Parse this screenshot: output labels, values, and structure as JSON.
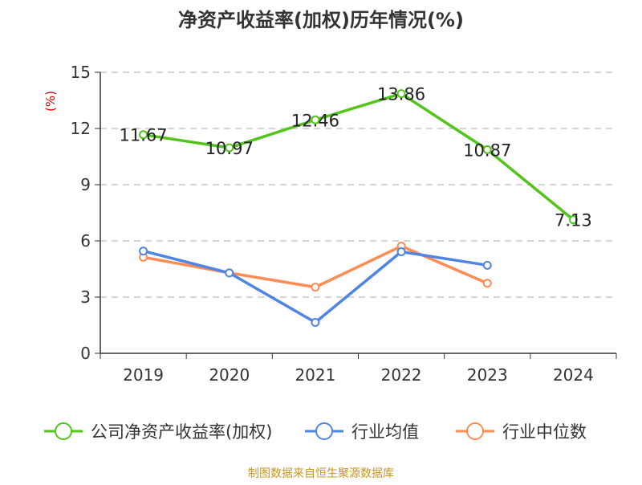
{
  "chart_data": {
    "type": "line",
    "title": "净资产收益率(加权)历年情况(%)",
    "ylabel": "(%)",
    "xlabel": "",
    "categories": [
      "2019",
      "2020",
      "2021",
      "2022",
      "2023",
      "2024"
    ],
    "ylim": [
      0,
      15
    ],
    "yticks": [
      0,
      3,
      6,
      9,
      12,
      15
    ],
    "grid": true,
    "legend_placement": "bottom",
    "series": [
      {
        "name": "公司净资产收益率(加权)",
        "color": "#52c41a",
        "values": [
          11.67,
          10.97,
          12.46,
          13.86,
          10.87,
          7.13
        ],
        "labels": [
          "11.67",
          "10.97",
          "12.46",
          "13.86",
          "10.87",
          "7.13"
        ]
      },
      {
        "name": "行业均值",
        "color": "#4e85e5",
        "values": [
          5.46,
          4.29,
          1.65,
          5.42,
          4.7,
          null
        ]
      },
      {
        "name": "行业中位数",
        "color": "#ff8c55",
        "values": [
          5.13,
          4.29,
          3.53,
          5.72,
          3.74,
          null
        ]
      }
    ]
  },
  "source": "制图数据来自恒生聚源数据库",
  "colors": {
    "ylabel": "#e00000",
    "source": "#c8961e",
    "grid": "#c8c8c8",
    "axis": "#333333"
  }
}
